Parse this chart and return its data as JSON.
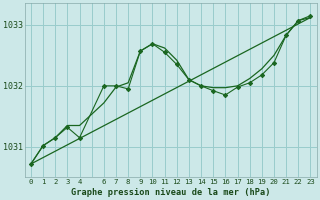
{
  "background_color": "#cce8e8",
  "grid_color": "#99cccc",
  "line_color": "#1a6620",
  "xlabel": "Graphe pression niveau de la mer (hPa)",
  "x_ticks": [
    0,
    1,
    2,
    3,
    4,
    5,
    6,
    7,
    8,
    9,
    10,
    11,
    12,
    13,
    14,
    15,
    16,
    17,
    18,
    19,
    20,
    21,
    22,
    23
  ],
  "x_tick_labels": [
    "0",
    "1",
    "2",
    "3",
    "4",
    "",
    "6",
    "7",
    "8",
    "9",
    "10",
    "11",
    "12",
    "13",
    "14",
    "15",
    "16",
    "17",
    "18",
    "19",
    "20",
    "21",
    "22",
    "23"
  ],
  "ylim": [
    1030.5,
    1033.35
  ],
  "yticks": [
    1031,
    1032,
    1033
  ],
  "trend_x": [
    0,
    23
  ],
  "trend_y": [
    1030.72,
    1033.12
  ],
  "smooth_x": [
    0,
    1,
    2,
    3,
    4,
    6,
    7,
    8,
    9,
    10,
    11,
    12,
    13,
    14,
    15,
    16,
    17,
    18,
    19,
    20,
    21,
    22,
    23
  ],
  "smooth_y": [
    1030.72,
    1031.02,
    1031.15,
    1031.35,
    1031.35,
    1031.72,
    1031.98,
    1032.05,
    1032.57,
    1032.69,
    1032.62,
    1032.42,
    1032.1,
    1032.0,
    1031.97,
    1031.97,
    1032.0,
    1032.12,
    1032.28,
    1032.5,
    1032.83,
    1033.07,
    1033.12
  ],
  "jagged_x": [
    0,
    1,
    2,
    3,
    4,
    6,
    7,
    8,
    9,
    10,
    11,
    12,
    13,
    14,
    15,
    16,
    17,
    18,
    19,
    20,
    21,
    22,
    23
  ],
  "jagged_y": [
    1030.72,
    1031.02,
    1031.15,
    1031.32,
    1031.15,
    1032.0,
    1032.0,
    1031.95,
    1032.57,
    1032.69,
    1032.55,
    1032.35,
    1032.1,
    1032.0,
    1031.92,
    1031.85,
    1031.98,
    1032.05,
    1032.18,
    1032.38,
    1032.83,
    1033.07,
    1033.15
  ]
}
